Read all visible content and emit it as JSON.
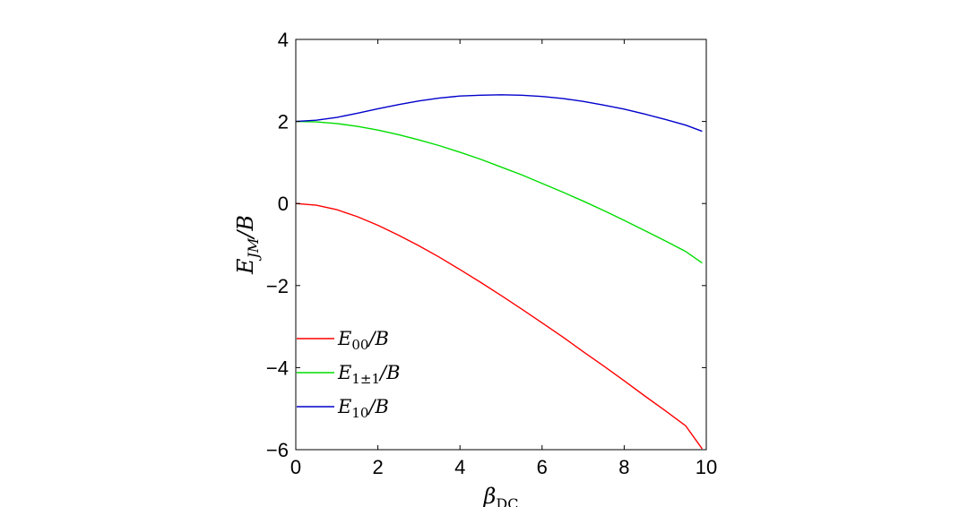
{
  "chart_data": {
    "type": "line",
    "xlabel": "β_DC",
    "ylabel": "E_JM/B",
    "xlim": [
      0,
      10
    ],
    "ylim": [
      -6,
      4
    ],
    "xticks": [
      "0",
      "2",
      "4",
      "6",
      "8",
      "10"
    ],
    "yticks": [
      "−6",
      "−4",
      "−2",
      "0",
      "2",
      "4"
    ],
    "grid": false,
    "legend_position": "bottom-left",
    "series": [
      {
        "name": "E_00/B",
        "color": "#ff0000",
        "x": [
          0,
          0.5,
          1,
          1.5,
          2,
          2.5,
          3,
          3.5,
          4,
          4.5,
          5,
          5.5,
          6,
          6.5,
          7,
          7.5,
          8,
          8.5,
          9,
          9.5,
          9.9
        ],
        "y": [
          0,
          -0.04,
          -0.15,
          -0.32,
          -0.53,
          -0.77,
          -1.03,
          -1.31,
          -1.61,
          -1.92,
          -2.24,
          -2.57,
          -2.91,
          -3.25,
          -3.61,
          -3.96,
          -4.32,
          -4.69,
          -5.05,
          -5.42,
          -5.98
        ]
      },
      {
        "name": "E_1±1/B",
        "color": "#00dd00",
        "x": [
          0,
          0.5,
          1,
          1.5,
          2,
          2.5,
          3,
          3.5,
          4,
          4.5,
          5,
          5.5,
          6,
          6.5,
          7,
          7.5,
          8,
          8.5,
          9,
          9.5,
          9.9
        ],
        "y": [
          2,
          1.99,
          1.95,
          1.88,
          1.79,
          1.68,
          1.55,
          1.41,
          1.25,
          1.08,
          0.89,
          0.7,
          0.49,
          0.28,
          0.06,
          -0.17,
          -0.41,
          -0.66,
          -0.91,
          -1.17,
          -1.45
        ]
      },
      {
        "name": "E_10/B",
        "color": "#0000cc",
        "x": [
          0,
          0.5,
          1,
          1.5,
          2,
          2.5,
          3,
          3.5,
          4,
          4.5,
          5,
          5.5,
          6,
          6.5,
          7,
          7.5,
          8,
          8.5,
          9,
          9.5,
          9.9
        ],
        "y": [
          2,
          2.03,
          2.1,
          2.2,
          2.31,
          2.41,
          2.5,
          2.57,
          2.62,
          2.64,
          2.65,
          2.64,
          2.61,
          2.56,
          2.49,
          2.4,
          2.3,
          2.18,
          2.05,
          1.91,
          1.76
        ]
      }
    ]
  }
}
